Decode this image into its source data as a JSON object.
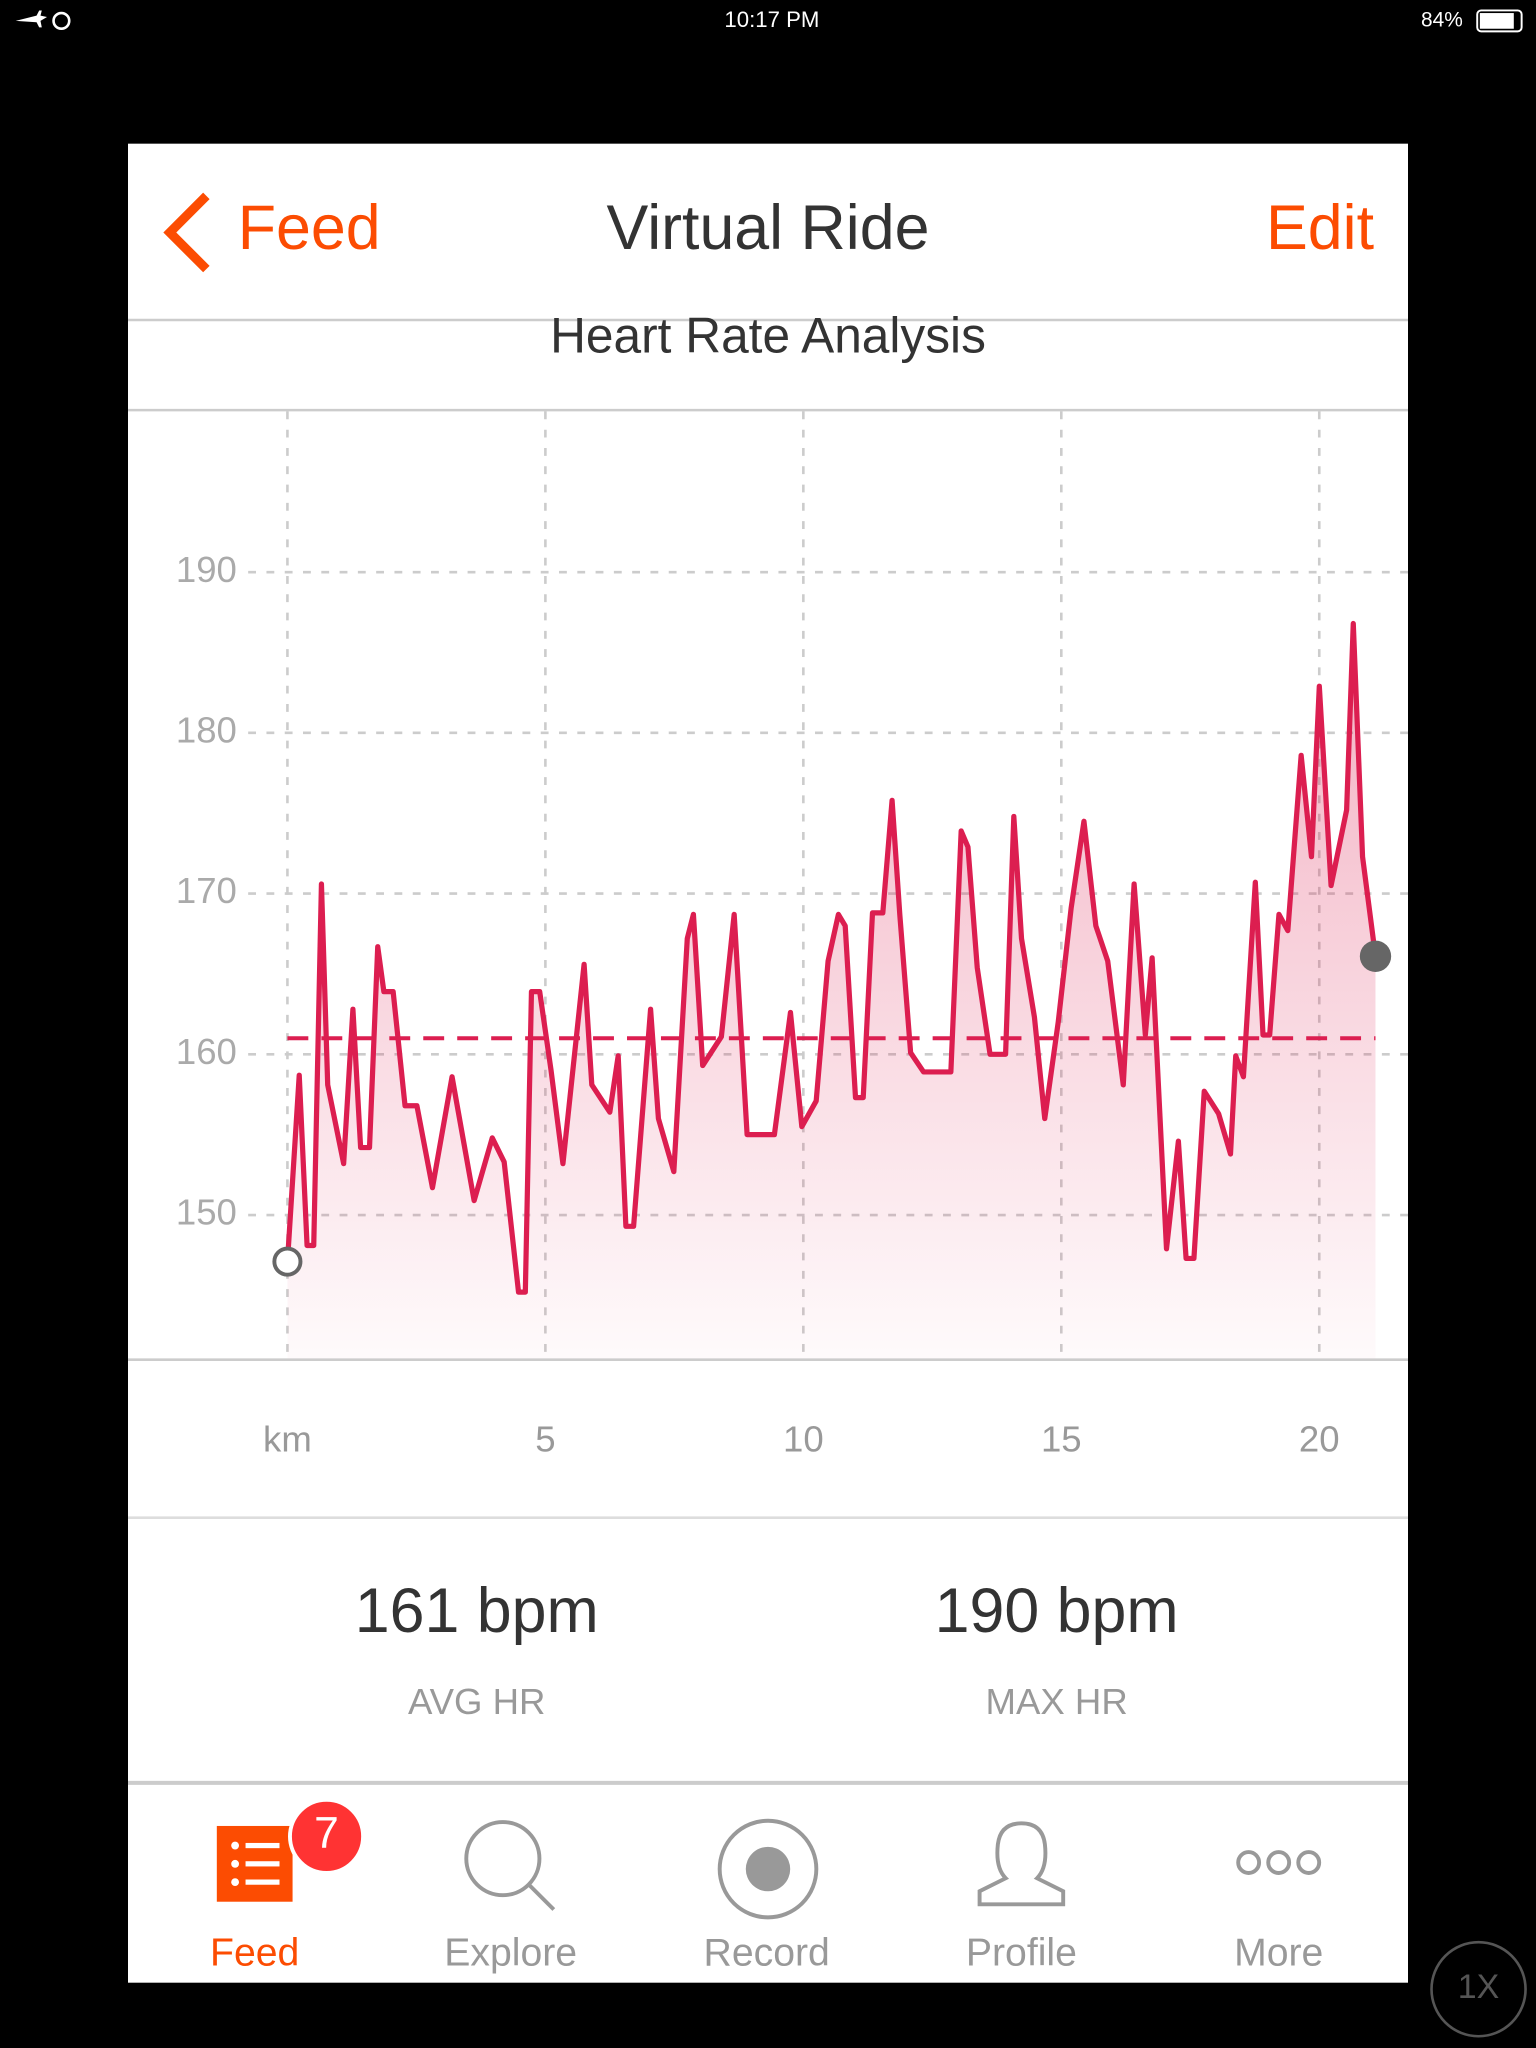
{
  "status_bar": {
    "time": "10:17 PM",
    "battery": "84%"
  },
  "nav": {
    "back": "Feed",
    "title": "Virtual Ride",
    "action": "Edit"
  },
  "chart_data": {
    "type": "line",
    "title": "Heart Rate Analysis",
    "color": "#dc1e50",
    "x": [
      0.0,
      0.23,
      0.38,
      0.51,
      0.66,
      0.78,
      1.09,
      1.27,
      1.42,
      1.59,
      1.75,
      1.87,
      2.05,
      2.28,
      2.51,
      2.81,
      3.19,
      3.62,
      3.97,
      4.2,
      4.48,
      4.61,
      4.73,
      4.89,
      5.11,
      5.34,
      5.75,
      5.9,
      6.25,
      6.41,
      6.56,
      6.71,
      7.04,
      7.19,
      7.49,
      7.75,
      7.87,
      8.05,
      8.41,
      8.66,
      8.91,
      9.44,
      9.75,
      9.97,
      10.25,
      10.48,
      10.68,
      10.81,
      11.01,
      11.16,
      11.34,
      11.54,
      11.72,
      11.87,
      12.08,
      12.33,
      12.86,
      13.06,
      13.19,
      13.37,
      13.62,
      13.92,
      14.08,
      14.23,
      14.48,
      14.68,
      14.94,
      15.19,
      15.44,
      15.67,
      15.9,
      16.2,
      16.41,
      16.63,
      16.76,
      17.04,
      17.27,
      17.42,
      17.57,
      17.77,
      18.05,
      18.28,
      18.38,
      18.53,
      18.76,
      18.91,
      19.04,
      19.22,
      19.39,
      19.65,
      19.85,
      20.0,
      20.23,
      20.53,
      20.66,
      20.84,
      21.09
    ],
    "values": [
      147.1,
      158.7,
      148.1,
      148.1,
      170.6,
      158.1,
      153.2,
      162.8,
      154.2,
      154.2,
      166.7,
      163.9,
      163.9,
      156.8,
      156.8,
      151.7,
      158.6,
      150.9,
      154.8,
      153.3,
      145.2,
      145.2,
      163.9,
      163.9,
      159.0,
      153.2,
      165.6,
      158.1,
      156.4,
      159.9,
      149.3,
      149.3,
      162.8,
      156.0,
      152.7,
      167.2,
      168.7,
      159.3,
      161.1,
      168.7,
      155.0,
      155.0,
      162.6,
      155.5,
      157.1,
      165.8,
      168.7,
      168.0,
      157.3,
      157.3,
      168.8,
      168.8,
      175.8,
      168.7,
      160.1,
      158.9,
      158.9,
      173.9,
      172.9,
      165.4,
      160.0,
      160.0,
      174.8,
      167.2,
      162.3,
      156.0,
      162.0,
      169.1,
      174.5,
      168.0,
      165.8,
      158.1,
      170.6,
      161.2,
      166.0,
      147.9,
      154.6,
      147.3,
      147.3,
      157.7,
      156.3,
      153.8,
      159.9,
      158.6,
      170.7,
      161.2,
      161.2,
      168.7,
      167.7,
      178.6,
      172.3,
      182.9,
      170.5,
      175.2,
      186.8,
      172.3,
      166.1
    ],
    "average": 161,
    "xlim": [
      -3.09,
      21.72
    ],
    "xticks": [
      {
        "value": 0,
        "label": "km"
      },
      5,
      10,
      15,
      20
    ],
    "ylim": [
      141,
      200
    ],
    "yticks": [
      150,
      160,
      170,
      180,
      190
    ],
    "grid": true
  },
  "stats": [
    {
      "value": "161 bpm",
      "label": "AVG HR"
    },
    {
      "value": "190 bpm",
      "label": "MAX HR"
    }
  ],
  "tab_bar": {
    "badge": "7",
    "tabs": [
      "Feed",
      "Explore",
      "Record",
      "Profile",
      "More"
    ]
  },
  "zoom": "1X"
}
